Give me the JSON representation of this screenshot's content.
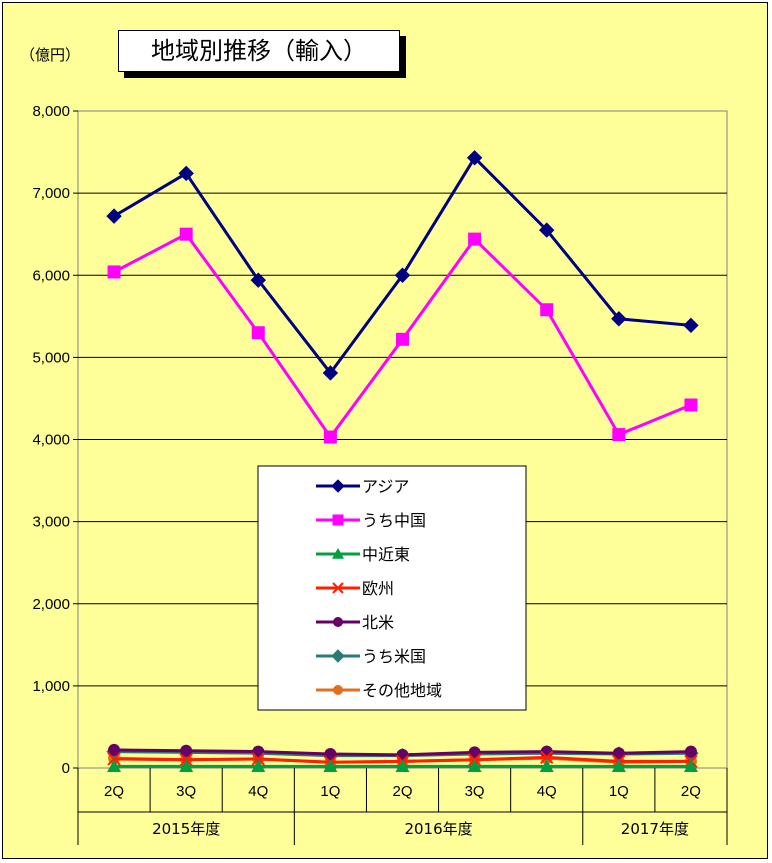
{
  "header": {
    "unit_label": "（億円）",
    "title": "地域別推移（輸入）"
  },
  "chart_data": {
    "type": "line",
    "title": "地域別推移（輸入）",
    "ylabel": "（億円）",
    "ylim": [
      0,
      8000
    ],
    "yticks": [
      "0",
      "1,000",
      "2,000",
      "3,000",
      "4,000",
      "5,000",
      "6,000",
      "7,000",
      "8,000"
    ],
    "categories": [
      "2Q",
      "3Q",
      "4Q",
      "1Q",
      "2Q",
      "3Q",
      "4Q",
      "1Q",
      "2Q"
    ],
    "fiscal_years": [
      {
        "label": "2015年度",
        "start": 0,
        "end": 2
      },
      {
        "label": "2016年度",
        "start": 3,
        "end": 6
      },
      {
        "label": "2017年度",
        "start": 7,
        "end": 8
      }
    ],
    "grid": true,
    "legend": "center",
    "series": [
      {
        "name": "アジア",
        "color": "#000080",
        "marker": "diamond",
        "values": [
          6720,
          7240,
          5940,
          4810,
          6000,
          7430,
          6550,
          5470,
          5390
        ]
      },
      {
        "name": "うち中国",
        "color": "#ff00ff",
        "marker": "square",
        "values": [
          6040,
          6500,
          5300,
          4030,
          5220,
          6440,
          5580,
          4060,
          4420
        ]
      },
      {
        "name": "中近東",
        "color": "#00a040",
        "marker": "triangle",
        "values": [
          20,
          20,
          20,
          20,
          20,
          20,
          20,
          20,
          20
        ]
      },
      {
        "name": "欧州",
        "color": "#ff2000",
        "marker": "x",
        "values": [
          110,
          100,
          110,
          70,
          80,
          100,
          130,
          80,
          80
        ]
      },
      {
        "name": "北米",
        "color": "#660066",
        "marker": "circle",
        "values": [
          220,
          210,
          200,
          170,
          160,
          190,
          200,
          180,
          200
        ]
      },
      {
        "name": "うち米国",
        "color": "#2a7a7a",
        "marker": "diamond",
        "values": [
          200,
          190,
          180,
          150,
          150,
          170,
          180,
          170,
          180
        ]
      },
      {
        "name": "その他地域",
        "color": "#e07020",
        "marker": "circle",
        "values": [
          120,
          100,
          110,
          70,
          80,
          100,
          120,
          70,
          80
        ]
      }
    ]
  }
}
